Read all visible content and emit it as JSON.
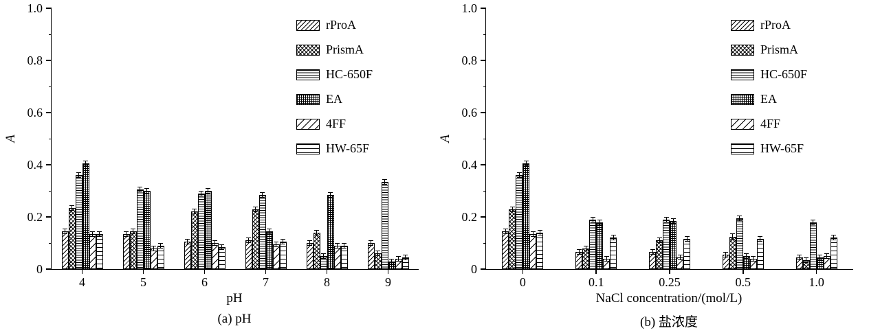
{
  "page": {
    "background": "#ffffff",
    "text_color": "#000000"
  },
  "chart_data": [
    {
      "type": "bar",
      "panel": "a",
      "caption": "(a) pH",
      "xlabel": "pH",
      "ylabel": "A",
      "ylim": [
        0,
        1.0
      ],
      "yticks": [
        0,
        0.2,
        0.4,
        0.6,
        0.8,
        1.0
      ],
      "ytick_labels": [
        "0",
        "0.2",
        "0.4",
        "0.6",
        "0.8",
        "1.0"
      ],
      "yminor": [
        0.1,
        0.3,
        0.5,
        0.7,
        0.9
      ],
      "categories": [
        "4",
        "5",
        "6",
        "7",
        "8",
        "9"
      ],
      "error_bar": 0.008,
      "legend_position": "upper-right-inside",
      "grid": false,
      "series": [
        {
          "name": "rProA",
          "pattern": "diag",
          "values": [
            0.145,
            0.135,
            0.105,
            0.11,
            0.1,
            0.1
          ]
        },
        {
          "name": "PrismA",
          "pattern": "cross",
          "values": [
            0.235,
            0.145,
            0.22,
            0.23,
            0.14,
            0.06
          ]
        },
        {
          "name": "HC-650F",
          "pattern": "hlines-dense",
          "values": [
            0.36,
            0.305,
            0.29,
            0.285,
            0.05,
            0.335
          ]
        },
        {
          "name": "EA",
          "pattern": "grid-dense",
          "values": [
            0.405,
            0.3,
            0.3,
            0.145,
            0.285,
            0.03
          ]
        },
        {
          "name": "4FF",
          "pattern": "diag-sparse",
          "values": [
            0.135,
            0.08,
            0.1,
            0.095,
            0.09,
            0.04
          ]
        },
        {
          "name": "HW-65F",
          "pattern": "hlines-sparse",
          "values": [
            0.135,
            0.09,
            0.085,
            0.105,
            0.09,
            0.045
          ]
        }
      ]
    },
    {
      "type": "bar",
      "panel": "b",
      "caption": "(b) 盐浓度",
      "xlabel": "NaCl concentration/(mol/L)",
      "ylabel": "A",
      "ylim": [
        0,
        1.0
      ],
      "yticks": [
        0,
        0.2,
        0.4,
        0.6,
        0.8,
        1.0
      ],
      "ytick_labels": [
        "0",
        "0.2",
        "0.4",
        "0.6",
        "0.8",
        "1.0"
      ],
      "yminor": [
        0.1,
        0.3,
        0.5,
        0.7,
        0.9
      ],
      "categories": [
        "0",
        "0.1",
        "0.25",
        "0.5",
        "1.0"
      ],
      "error_bar": 0.008,
      "legend_position": "upper-right-inside",
      "grid": false,
      "series": [
        {
          "name": "rProA",
          "pattern": "diag",
          "values": [
            0.145,
            0.065,
            0.065,
            0.055,
            0.045
          ]
        },
        {
          "name": "PrismA",
          "pattern": "cross",
          "values": [
            0.23,
            0.08,
            0.11,
            0.125,
            0.035
          ]
        },
        {
          "name": "HC-650F",
          "pattern": "hlines-dense",
          "values": [
            0.36,
            0.19,
            0.19,
            0.195,
            0.18
          ]
        },
        {
          "name": "EA",
          "pattern": "grid-dense",
          "values": [
            0.405,
            0.18,
            0.185,
            0.05,
            0.045
          ]
        },
        {
          "name": "4FF",
          "pattern": "diag-sparse",
          "values": [
            0.135,
            0.04,
            0.045,
            0.04,
            0.05
          ]
        },
        {
          "name": "HW-65F",
          "pattern": "hlines-sparse",
          "values": [
            0.14,
            0.12,
            0.115,
            0.115,
            0.12
          ]
        }
      ]
    }
  ]
}
